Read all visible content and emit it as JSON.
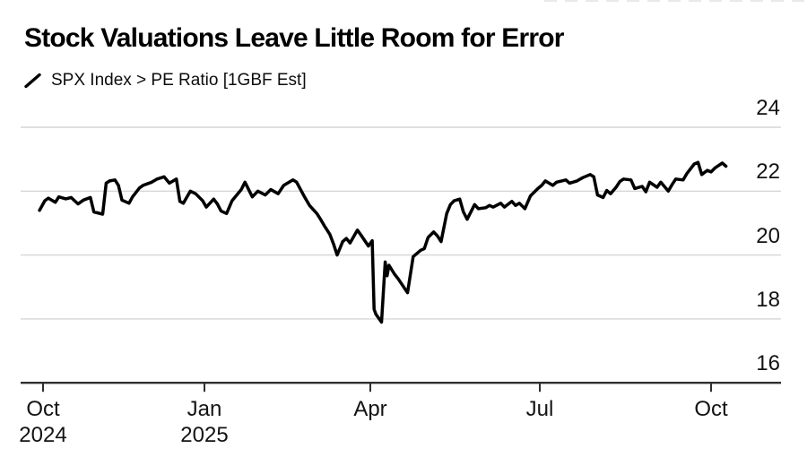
{
  "header": {
    "title": "Stock Valuations Leave Little Room for Error",
    "legend": {
      "icon": "diagonal-line-series-mark",
      "label": "SPX Index > PE Ratio [1GBF Est]"
    }
  },
  "chart_data": {
    "type": "line",
    "title": "Stock Valuations Leave Little Room for Error",
    "series_name": "SPX Index > PE Ratio [1GBF Est]",
    "line_color": "#000000",
    "grid_color": "#d6d6d6",
    "axis_color": "#2f2f2f",
    "label_color": "#131313",
    "background": "#ffffff",
    "legend_position": "top-left",
    "grid": "horizontal-only",
    "y_axis": {
      "side": "right",
      "ticks": [
        24,
        22,
        20,
        18,
        16
      ],
      "range": [
        16,
        24.6
      ]
    },
    "x_axis": {
      "tick_dates": [
        "2024-10-01",
        "2025-01-01",
        "2025-04-01",
        "2025-07-01",
        "2025-10-01"
      ],
      "tick_labels": [
        {
          "month": "Oct",
          "year": "2024"
        },
        {
          "month": "Jan",
          "year": "2025"
        },
        {
          "month": "Apr",
          "year": ""
        },
        {
          "month": "Jul",
          "year": ""
        },
        {
          "month": "Oct",
          "year": ""
        }
      ]
    },
    "points": [
      [
        "2024-09-29",
        21.4
      ],
      [
        "2024-10-02",
        21.7
      ],
      [
        "2024-10-04",
        21.78
      ],
      [
        "2024-10-08",
        21.65
      ],
      [
        "2024-10-10",
        21.82
      ],
      [
        "2024-10-14",
        21.76
      ],
      [
        "2024-10-17",
        21.8
      ],
      [
        "2024-10-21",
        21.6
      ],
      [
        "2024-10-24",
        21.72
      ],
      [
        "2024-10-28",
        21.8
      ],
      [
        "2024-10-30",
        21.35
      ],
      [
        "2024-11-04",
        21.28
      ],
      [
        "2024-11-06",
        22.25
      ],
      [
        "2024-11-08",
        22.32
      ],
      [
        "2024-11-11",
        22.35
      ],
      [
        "2024-11-13",
        22.18
      ],
      [
        "2024-11-15",
        21.72
      ],
      [
        "2024-11-19",
        21.62
      ],
      [
        "2024-11-21",
        21.82
      ],
      [
        "2024-11-25",
        22.1
      ],
      [
        "2024-11-27",
        22.18
      ],
      [
        "2024-12-02",
        22.28
      ],
      [
        "2024-12-05",
        22.38
      ],
      [
        "2024-12-09",
        22.45
      ],
      [
        "2024-12-12",
        22.25
      ],
      [
        "2024-12-16",
        22.38
      ],
      [
        "2024-12-18",
        21.68
      ],
      [
        "2024-12-20",
        21.62
      ],
      [
        "2024-12-24",
        22.0
      ],
      [
        "2024-12-27",
        21.92
      ],
      [
        "2024-12-31",
        21.7
      ],
      [
        "2025-01-02",
        21.5
      ],
      [
        "2025-01-06",
        21.75
      ],
      [
        "2025-01-08",
        21.6
      ],
      [
        "2025-01-10",
        21.38
      ],
      [
        "2025-01-13",
        21.3
      ],
      [
        "2025-01-16",
        21.7
      ],
      [
        "2025-01-21",
        22.05
      ],
      [
        "2025-01-23",
        22.28
      ],
      [
        "2025-01-27",
        21.82
      ],
      [
        "2025-01-30",
        22.0
      ],
      [
        "2025-02-03",
        21.88
      ],
      [
        "2025-02-06",
        22.05
      ],
      [
        "2025-02-10",
        21.92
      ],
      [
        "2025-02-13",
        22.18
      ],
      [
        "2025-02-18",
        22.35
      ],
      [
        "2025-02-20",
        22.28
      ],
      [
        "2025-02-24",
        21.85
      ],
      [
        "2025-02-27",
        21.55
      ],
      [
        "2025-03-03",
        21.3
      ],
      [
        "2025-03-05",
        21.12
      ],
      [
        "2025-03-07",
        20.92
      ],
      [
        "2025-03-10",
        20.65
      ],
      [
        "2025-03-12",
        20.35
      ],
      [
        "2025-03-14",
        20.0
      ],
      [
        "2025-03-17",
        20.42
      ],
      [
        "2025-03-19",
        20.52
      ],
      [
        "2025-03-21",
        20.38
      ],
      [
        "2025-03-25",
        20.78
      ],
      [
        "2025-03-27",
        20.62
      ],
      [
        "2025-03-31",
        20.28
      ],
      [
        "2025-04-02",
        20.45
      ],
      [
        "2025-04-03",
        18.3
      ],
      [
        "2025-04-04",
        18.15
      ],
      [
        "2025-04-07",
        17.9
      ],
      [
        "2025-04-09",
        19.78
      ],
      [
        "2025-04-10",
        19.35
      ],
      [
        "2025-04-11",
        19.68
      ],
      [
        "2025-04-14",
        19.4
      ],
      [
        "2025-04-16",
        19.25
      ],
      [
        "2025-04-21",
        18.82
      ],
      [
        "2025-04-24",
        19.95
      ],
      [
        "2025-04-28",
        20.15
      ],
      [
        "2025-04-30",
        20.2
      ],
      [
        "2025-05-02",
        20.55
      ],
      [
        "2025-05-05",
        20.72
      ],
      [
        "2025-05-07",
        20.6
      ],
      [
        "2025-05-09",
        20.42
      ],
      [
        "2025-05-12",
        21.3
      ],
      [
        "2025-05-14",
        21.58
      ],
      [
        "2025-05-16",
        21.7
      ],
      [
        "2025-05-19",
        21.75
      ],
      [
        "2025-05-21",
        21.35
      ],
      [
        "2025-05-23",
        21.12
      ],
      [
        "2025-05-27",
        21.58
      ],
      [
        "2025-05-29",
        21.45
      ],
      [
        "2025-06-02",
        21.48
      ],
      [
        "2025-06-04",
        21.55
      ],
      [
        "2025-06-06",
        21.5
      ],
      [
        "2025-06-10",
        21.62
      ],
      [
        "2025-06-12",
        21.5
      ],
      [
        "2025-06-16",
        21.68
      ],
      [
        "2025-06-18",
        21.55
      ],
      [
        "2025-06-20",
        21.62
      ],
      [
        "2025-06-23",
        21.45
      ],
      [
        "2025-06-26",
        21.85
      ],
      [
        "2025-06-30",
        22.08
      ],
      [
        "2025-07-02",
        22.18
      ],
      [
        "2025-07-04",
        22.32
      ],
      [
        "2025-07-08",
        22.18
      ],
      [
        "2025-07-10",
        22.28
      ],
      [
        "2025-07-15",
        22.35
      ],
      [
        "2025-07-17",
        22.25
      ],
      [
        "2025-07-21",
        22.32
      ],
      [
        "2025-07-24",
        22.42
      ],
      [
        "2025-07-28",
        22.52
      ],
      [
        "2025-07-30",
        22.45
      ],
      [
        "2025-08-01",
        21.88
      ],
      [
        "2025-08-04",
        21.8
      ],
      [
        "2025-08-06",
        22.02
      ],
      [
        "2025-08-08",
        21.92
      ],
      [
        "2025-08-11",
        22.12
      ],
      [
        "2025-08-13",
        22.3
      ],
      [
        "2025-08-15",
        22.38
      ],
      [
        "2025-08-19",
        22.35
      ],
      [
        "2025-08-21",
        22.08
      ],
      [
        "2025-08-25",
        22.15
      ],
      [
        "2025-08-27",
        21.98
      ],
      [
        "2025-08-29",
        22.28
      ],
      [
        "2025-09-02",
        22.12
      ],
      [
        "2025-09-04",
        22.28
      ],
      [
        "2025-09-08",
        22.0
      ],
      [
        "2025-09-10",
        22.2
      ],
      [
        "2025-09-12",
        22.38
      ],
      [
        "2025-09-16",
        22.35
      ],
      [
        "2025-09-18",
        22.55
      ],
      [
        "2025-09-22",
        22.85
      ],
      [
        "2025-09-24",
        22.9
      ],
      [
        "2025-09-26",
        22.52
      ],
      [
        "2025-09-29",
        22.65
      ],
      [
        "2025-10-01",
        22.6
      ],
      [
        "2025-10-03",
        22.72
      ],
      [
        "2025-10-07",
        22.88
      ],
      [
        "2025-10-09",
        22.78
      ]
    ]
  }
}
